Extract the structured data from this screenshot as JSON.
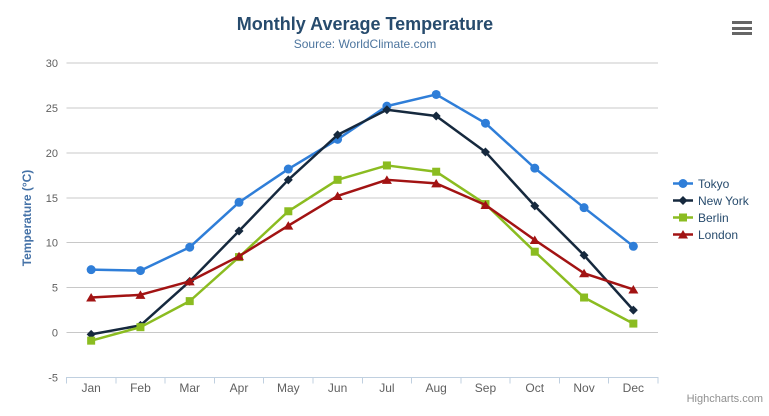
{
  "chart_data": {
    "type": "line",
    "title": "Monthly Average Temperature",
    "subtitle": "Source: WorldClimate.com",
    "xlabel": "",
    "ylabel": "Temperature (°C)",
    "ylim": [
      -5,
      30
    ],
    "ytick_step": 5,
    "grid": true,
    "legend_position": "right",
    "categories": [
      "Jan",
      "Feb",
      "Mar",
      "Apr",
      "May",
      "Jun",
      "Jul",
      "Aug",
      "Sep",
      "Oct",
      "Nov",
      "Dec"
    ],
    "series": [
      {
        "name": "Tokyo",
        "color": "#2f7ed8",
        "marker": "circle",
        "values": [
          7.0,
          6.9,
          9.5,
          14.5,
          18.2,
          21.5,
          25.2,
          26.5,
          23.3,
          18.3,
          13.9,
          9.6
        ]
      },
      {
        "name": "New York",
        "color": "#16293e",
        "marker": "diamond",
        "values": [
          -0.2,
          0.8,
          5.7,
          11.3,
          17.0,
          22.0,
          24.8,
          24.1,
          20.1,
          14.1,
          8.6,
          2.5
        ]
      },
      {
        "name": "Berlin",
        "color": "#8bbc21",
        "marker": "square",
        "values": [
          -0.9,
          0.6,
          3.5,
          8.4,
          13.5,
          17.0,
          18.6,
          17.9,
          14.3,
          9.0,
          3.9,
          1.0
        ]
      },
      {
        "name": "London",
        "color": "#a21313",
        "marker": "triangle",
        "values": [
          3.9,
          4.2,
          5.7,
          8.5,
          11.9,
          15.2,
          17.0,
          16.6,
          14.2,
          10.3,
          6.6,
          4.8
        ]
      }
    ],
    "theme": {
      "background": "#ffffff",
      "grid_color": "#c8c8c8",
      "axis_line_color": "#c0d0e0",
      "label_color": "#606060",
      "title_color": "#274b6d",
      "subtitle_color": "#4d759e",
      "axis_title_color": "#4572a7",
      "legend_text_color": "#274b6d",
      "credits_color": "#909090",
      "menu_icon_color": "#666666"
    }
  },
  "export_menu": {
    "icon": "hamburger-menu-icon"
  },
  "credits": {
    "label": "Highcharts.com"
  }
}
